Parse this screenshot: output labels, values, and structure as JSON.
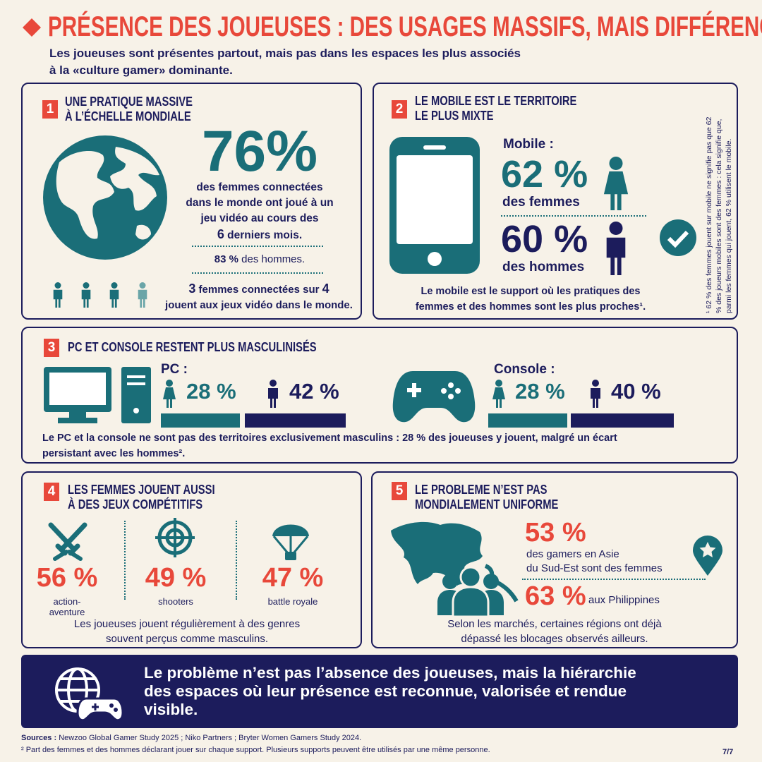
{
  "header": {
    "title": "PRÉSENCE DES JOUEUSES : DES USAGES MASSIFS, MAIS DIFFÉRENCIÉS",
    "subtitle": [
      "Les joueuses sont présentes partout, mais pas dans les espaces les plus associés",
      "à la «culture gamer» dominante."
    ]
  },
  "section1": {
    "number": "1",
    "title": [
      "UNE PRATIQUE MASSIVE",
      "À L’ÉCHELLE MONDIALE"
    ],
    "big": "76%",
    "text": [
      "des femmes connectées",
      "dans le monde ont joué à un",
      "jeu vidéo au cours des"
    ],
    "months_num": "6",
    "months": "derniers mois.",
    "men_pct": "83 %",
    "men": "des hommes.",
    "ratio_num1": "3",
    "ratio_text1": "femmes connectées sur",
    "ratio_num2": "4",
    "ratio_text2": "jouent aux jeux vidéo dans le monde."
  },
  "section2": {
    "number": "2",
    "title": [
      "LE MOBILE EST LE TERRITOIRE",
      "LE PLUS MIXTE"
    ],
    "label": "Mobile :",
    "women_pct": "62 %",
    "women": "des femmes",
    "men_pct": "60 %",
    "men": "des hommes",
    "note": [
      "Le mobile est le support où les pratiques des",
      "femmes et des hommes sont les plus proches¹."
    ],
    "side_note": [
      "¹ 62 % des femmes jouent sur mobile ne signifie pas que 62",
      "% des joueurs mobiles sont des femmes : cela signifie que,",
      "parmi les femmes qui jouent, 62 % utilisent le mobile."
    ]
  },
  "section3": {
    "number": "3",
    "title": "PC ET CONSOLE RESTENT PLUS MASCULINISÉS",
    "pc": {
      "label": "PC :",
      "women_pct": "28 %",
      "men_pct": "42 %"
    },
    "console": {
      "label": "Console :",
      "women_pct": "28 %",
      "men_pct": "40 %"
    },
    "note": [
      "Le PC et la console ne sont pas des territoires exclusivement masculins : 28 % des joueuses y jouent, malgré un écart",
      "persistant avec les hommes²."
    ]
  },
  "section4": {
    "number": "4",
    "title": [
      "LES FEMMES JOUENT AUSSI",
      "À DES JEUX COMPÉTITIFS"
    ],
    "genres": [
      {
        "pct": "56 %",
        "label": [
          "action-",
          "aventure"
        ]
      },
      {
        "pct": "49 %",
        "label": [
          "shooters"
        ]
      },
      {
        "pct": "47 %",
        "label": [
          "battle royale"
        ]
      }
    ],
    "note": [
      "Les joueuses jouent régulièrement à des genres",
      "souvent perçus comme masculins."
    ]
  },
  "section5": {
    "number": "5",
    "title": [
      "LE PROBLEME N’EST PAS",
      "MONDIALEMENT UNIFORME"
    ],
    "pct1": "53 %",
    "text1": [
      "des gamers en Asie",
      "du Sud-Est sont des femmes"
    ],
    "pct2": "63 %",
    "text2": "aux Philippines",
    "note": [
      "Selon les marchés, certaines régions ont déjà",
      "dépassé les blocages observés ailleurs."
    ]
  },
  "banner": [
    "Le problème n’est pas l’absence des joueuses, mais la hiérarchie",
    "des espaces où leur présence est reconnue, valorisée et rendue",
    "visible."
  ],
  "footer": {
    "sources_label": "Sources :",
    "sources": "Newzoo Global Gamer Study 2025 ; Niko Partners ; Bryter Women Gamers Study 2024.",
    "footnote": "² Part des femmes et des hommes déclarant jouer sur chaque support. Plusieurs supports peuvent être utilisés par une même personne.",
    "page": "7/7"
  }
}
